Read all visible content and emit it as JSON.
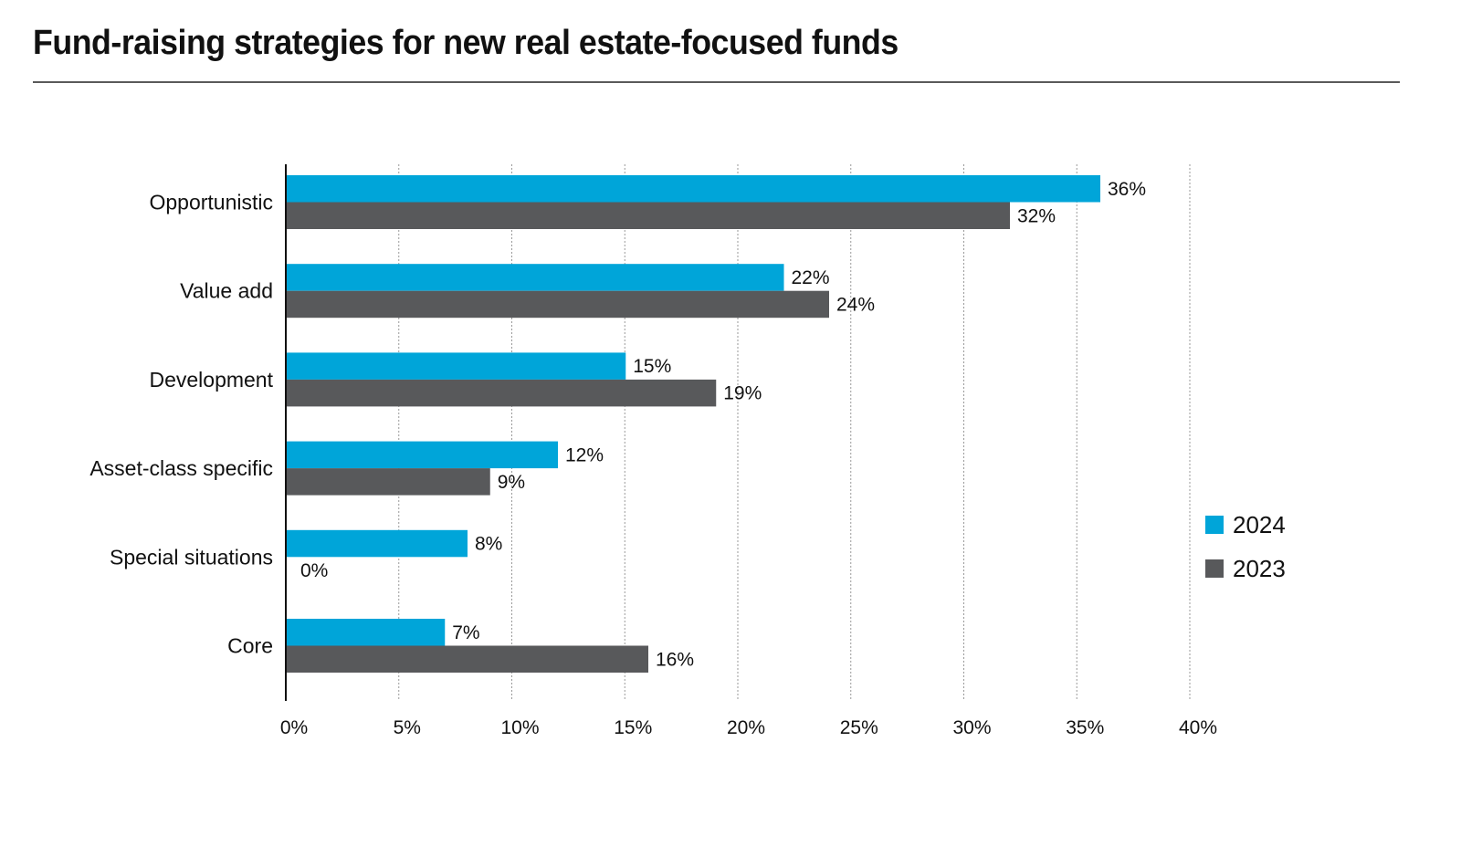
{
  "title": "Fund-raising strategies for new real estate-focused funds",
  "chart_data": {
    "type": "bar",
    "orientation": "horizontal",
    "title": "Fund-raising strategies for new real estate-focused funds",
    "categories": [
      "Opportunistic",
      "Value add",
      "Development",
      "Asset-class specific",
      "Special situations",
      "Core"
    ],
    "series": [
      {
        "name": "2024",
        "color": "#00a5d9",
        "values": [
          36,
          22,
          15,
          12,
          8,
          7
        ]
      },
      {
        "name": "2023",
        "color": "#58595b",
        "values": [
          32,
          24,
          19,
          9,
          0,
          16
        ]
      }
    ],
    "xlim": [
      0,
      40
    ],
    "xticks": [
      0,
      5,
      10,
      15,
      20,
      25,
      30,
      35,
      40
    ],
    "tick_suffix": "%",
    "value_suffix": "%",
    "xlabel": "",
    "ylabel": "",
    "grid": "vertical-dotted",
    "legend": {
      "position": "right",
      "entries": [
        "2024",
        "2023"
      ]
    }
  }
}
